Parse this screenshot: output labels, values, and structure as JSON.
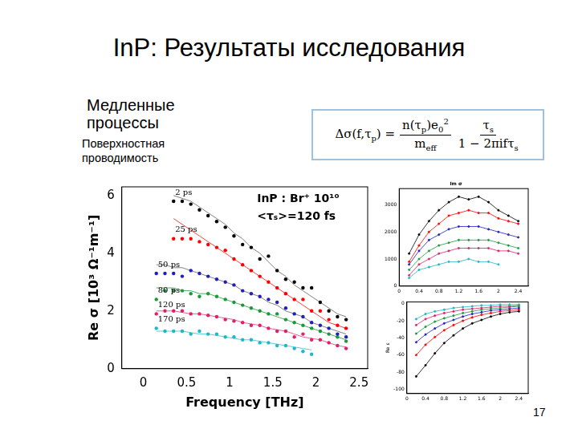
{
  "slide": {
    "title": "InP: Результаты исследования",
    "subtitle": "Медленные процессы",
    "caption": "Поверхностная проводимость",
    "page_number": "17",
    "formula": {
      "lhs": [
        "Δσ(",
        "f",
        ",τ",
        {
          "sub": "p"
        },
        ") ="
      ],
      "fractions": [
        {
          "num": [
            "n(τ",
            {
              "sub": "p"
            },
            ")e",
            {
              "sub": "0"
            },
            {
              "sup": "2"
            }
          ],
          "den": [
            "m",
            {
              "sub": "eff"
            }
          ]
        },
        {
          "num": [
            "τ",
            {
              "sub": "s"
            }
          ],
          "den": [
            "1 − 2πifτ",
            {
              "sub": "s"
            }
          ]
        }
      ]
    }
  },
  "chart_data": [
    {
      "type": "scatter",
      "x_label": "Frequency [THz]",
      "y_label": "Re σ [10³ Ω⁻¹m⁻¹]",
      "annotations": [
        "InP : Br⁺ 10¹⁰",
        "<τₛ>=120 fs"
      ],
      "xlim": [
        -0.25,
        2.6
      ],
      "xticks": [
        0,
        0.5,
        1,
        1.5,
        2,
        2.5
      ],
      "ylim": [
        0,
        6.3
      ],
      "yticks": [
        0,
        2,
        4,
        6
      ],
      "grid": false,
      "x": [
        0.15,
        0.25,
        0.35,
        0.45,
        0.55,
        0.65,
        0.75,
        0.85,
        0.95,
        1.05,
        1.15,
        1.25,
        1.35,
        1.45,
        1.55,
        1.65,
        1.75,
        1.85,
        1.95,
        2.05,
        2.15,
        2.25,
        2.35
      ],
      "series": [
        {
          "name": "2 ps",
          "color": "#000000",
          "marker": "circle",
          "values": [
            null,
            null,
            5.8,
            5.8,
            5.7,
            5.5,
            5.3,
            5.1,
            4.9,
            4.6,
            4.3,
            4.2,
            3.8,
            3.9,
            3.4,
            3.1,
            3.0,
            2.8,
            2.8,
            2.3,
            2.0,
            1.8,
            1.7
          ]
        },
        {
          "color": "#808080",
          "type": "line",
          "marker": "none",
          "values": [
            null,
            null,
            6.0,
            5.9,
            5.8,
            5.6,
            5.4,
            5.2,
            5.0,
            4.7,
            4.5,
            4.2,
            4.0,
            3.7,
            3.4,
            3.2,
            2.9,
            2.7,
            2.5,
            2.3,
            2.1,
            1.9,
            1.8
          ]
        },
        {
          "name": "25 ps",
          "color": "#ff0000",
          "marker": "circle",
          "values": [
            null,
            null,
            4.5,
            4.5,
            4.5,
            4.4,
            4.3,
            4.2,
            4.1,
            3.8,
            3.6,
            3.4,
            3.2,
            3.0,
            2.8,
            2.6,
            2.4,
            2.4,
            2.0,
            2.0,
            1.7,
            1.5,
            1.4
          ]
        },
        {
          "color": "#ff4040",
          "type": "line",
          "marker": "none",
          "values": [
            null,
            null,
            5.2,
            5.0,
            4.8,
            4.6,
            4.4,
            4.2,
            4.0,
            3.8,
            3.6,
            3.4,
            3.2,
            3.0,
            2.8,
            2.6,
            2.4,
            2.2,
            2.0,
            1.8,
            1.6,
            1.5,
            1.4
          ]
        },
        {
          "name": "50 ps",
          "color": "#1f1fbf",
          "marker": "circle",
          "values": [
            3.3,
            3.3,
            3.3,
            3.2,
            3.4,
            3.3,
            3.2,
            3.1,
            3.0,
            2.9,
            2.7,
            2.6,
            2.5,
            2.4,
            2.3,
            2.1,
            1.9,
            1.8,
            1.6,
            1.5,
            1.4,
            1.2,
            1.1
          ]
        },
        {
          "color": "#808080",
          "type": "line",
          "marker": "none",
          "values": [
            3.6,
            3.6,
            3.5,
            3.5,
            3.4,
            3.3,
            3.2,
            3.1,
            3.0,
            2.9,
            2.7,
            2.6,
            2.5,
            2.3,
            2.2,
            2.0,
            1.9,
            1.8,
            1.6,
            1.5,
            1.4,
            1.3,
            1.2
          ]
        },
        {
          "name": "80 ps",
          "color": "#1a9a3a",
          "marker": "circle",
          "values": [
            2.4,
            2.7,
            2.7,
            2.7,
            2.6,
            2.5,
            2.6,
            2.5,
            2.4,
            2.3,
            2.2,
            2.1,
            2.0,
            1.9,
            1.9,
            1.7,
            1.6,
            1.5,
            1.4,
            1.3,
            1.2,
            1.1,
            0.95
          ]
        },
        {
          "color": "#50b060",
          "type": "line",
          "marker": "none",
          "values": [
            2.8,
            2.8,
            2.8,
            2.7,
            2.7,
            2.6,
            2.6,
            2.5,
            2.4,
            2.3,
            2.2,
            2.1,
            2.0,
            1.9,
            1.8,
            1.7,
            1.6,
            1.5,
            1.4,
            1.3,
            1.2,
            1.1,
            1.0
          ]
        },
        {
          "name": "120 ps",
          "color": "#e0206a",
          "marker": "circle",
          "values": [
            1.9,
            2.0,
            2.0,
            2.0,
            1.9,
            1.9,
            1.85,
            1.8,
            1.7,
            1.65,
            1.6,
            1.5,
            1.5,
            1.4,
            1.3,
            1.3,
            1.1,
            1.2,
            1.0,
            1.0,
            0.9,
            0.8,
            0.7
          ]
        },
        {
          "color": "#e86090",
          "type": "line",
          "marker": "none",
          "values": [
            2.0,
            2.0,
            2.0,
            1.95,
            1.9,
            1.9,
            1.85,
            1.8,
            1.75,
            1.7,
            1.6,
            1.55,
            1.5,
            1.4,
            1.35,
            1.3,
            1.2,
            1.1,
            1.05,
            1.0,
            0.9,
            0.8,
            0.75
          ]
        },
        {
          "name": "170 ps",
          "color": "#20b8c8",
          "marker": "circle",
          "values": [
            1.4,
            1.3,
            1.3,
            1.3,
            1.2,
            1.3,
            1.2,
            1.2,
            1.1,
            1.1,
            1.0,
            1.0,
            0.9,
            0.9,
            0.8,
            0.8,
            0.7,
            0.6,
            0.5,
            null,
            null,
            null,
            null
          ]
        },
        {
          "color": "#60c8d8",
          "type": "line",
          "marker": "none",
          "values": [
            1.3,
            1.3,
            1.3,
            1.3,
            1.25,
            1.2,
            1.2,
            1.15,
            1.1,
            1.05,
            1.0,
            1.0,
            0.95,
            0.9,
            0.85,
            0.8,
            0.75,
            0.7,
            0.65,
            null,
            null,
            null,
            null
          ]
        }
      ]
    },
    {
      "type": "line",
      "title": "Im σ",
      "xlim": [
        0,
        2.6
      ],
      "xticks": [
        0,
        0.4,
        0.8,
        1.2,
        1.6,
        2,
        2.4
      ],
      "ylim": [
        0,
        3600
      ],
      "yticks": [
        0,
        1000,
        2000,
        3000
      ],
      "grid": false,
      "x": [
        0.2,
        0.4,
        0.6,
        0.8,
        1.0,
        1.2,
        1.4,
        1.6,
        1.8,
        2.0,
        2.2,
        2.4
      ],
      "series": [
        {
          "color": "#000000",
          "marker": "circle",
          "values": [
            1200,
            1900,
            2400,
            2800,
            3100,
            3300,
            3200,
            3300,
            3100,
            2800,
            2600,
            2400
          ]
        },
        {
          "color": "#ff0000",
          "marker": "circle",
          "values": [
            900,
            1500,
            2000,
            2300,
            2600,
            2700,
            2800,
            2700,
            2700,
            2500,
            2400,
            2300
          ]
        },
        {
          "color": "#1f1fbf",
          "marker": "circle",
          "values": [
            800,
            1300,
            1700,
            1900,
            2100,
            2200,
            2200,
            2200,
            2100,
            2000,
            1900,
            1800
          ]
        },
        {
          "color": "#1a9a3a",
          "marker": "circle",
          "values": [
            600,
            1000,
            1300,
            1500,
            1600,
            1700,
            1700,
            1700,
            1700,
            1600,
            1500,
            1400
          ]
        },
        {
          "color": "#e0206a",
          "marker": "circle",
          "values": [
            400,
            800,
            1000,
            1200,
            1300,
            1400,
            1400,
            1400,
            1400,
            1300,
            1300,
            1200
          ]
        },
        {
          "color": "#20b8c8",
          "marker": "circle",
          "values": [
            300,
            600,
            700,
            800,
            900,
            900,
            1000,
            900,
            900,
            800,
            null,
            null
          ]
        }
      ]
    },
    {
      "type": "line",
      "y_label": "Re ε",
      "xlim": [
        0,
        2.6
      ],
      "xticks": [
        0,
        0.4,
        0.8,
        1.2,
        1.6,
        2,
        2.4
      ],
      "ylim": [
        -105,
        2
      ],
      "yticks": [
        -100,
        -80,
        -60,
        -40,
        -20,
        0
      ],
      "grid": false,
      "x": [
        0.2,
        0.4,
        0.6,
        0.8,
        1.0,
        1.2,
        1.4,
        1.6,
        1.8,
        2.0,
        2.2,
        2.4
      ],
      "series": [
        {
          "color": "#20b8c8",
          "marker": "circle",
          "values": [
            -18,
            -12,
            -9,
            -7,
            -5,
            -4,
            -3,
            -2,
            -2,
            -1,
            -1,
            -1
          ]
        },
        {
          "color": "#e0206a",
          "marker": "circle",
          "values": [
            -25,
            -18,
            -14,
            -11,
            -9,
            -7,
            -6,
            -5,
            -4,
            -3,
            -3,
            -2
          ]
        },
        {
          "color": "#1a9a3a",
          "marker": "circle",
          "values": [
            -35,
            -27,
            -21,
            -17,
            -14,
            -11,
            -9,
            -7,
            -6,
            -5,
            -4,
            -3
          ]
        },
        {
          "color": "#1f1fbf",
          "marker": "circle",
          "values": [
            -45,
            -36,
            -29,
            -23,
            -19,
            -15,
            -12,
            -10,
            -8,
            -7,
            -6,
            -5
          ]
        },
        {
          "color": "#ff0000",
          "marker": "circle",
          "values": [
            -60,
            -48,
            -39,
            -31,
            -25,
            -20,
            -16,
            -13,
            -11,
            -9,
            -8,
            -7
          ]
        },
        {
          "color": "#000000",
          "marker": "circle",
          "values": [
            -85,
            -72,
            -58,
            -46,
            -37,
            -29,
            -23,
            -19,
            -15,
            -12,
            -10,
            -9
          ]
        }
      ]
    }
  ]
}
